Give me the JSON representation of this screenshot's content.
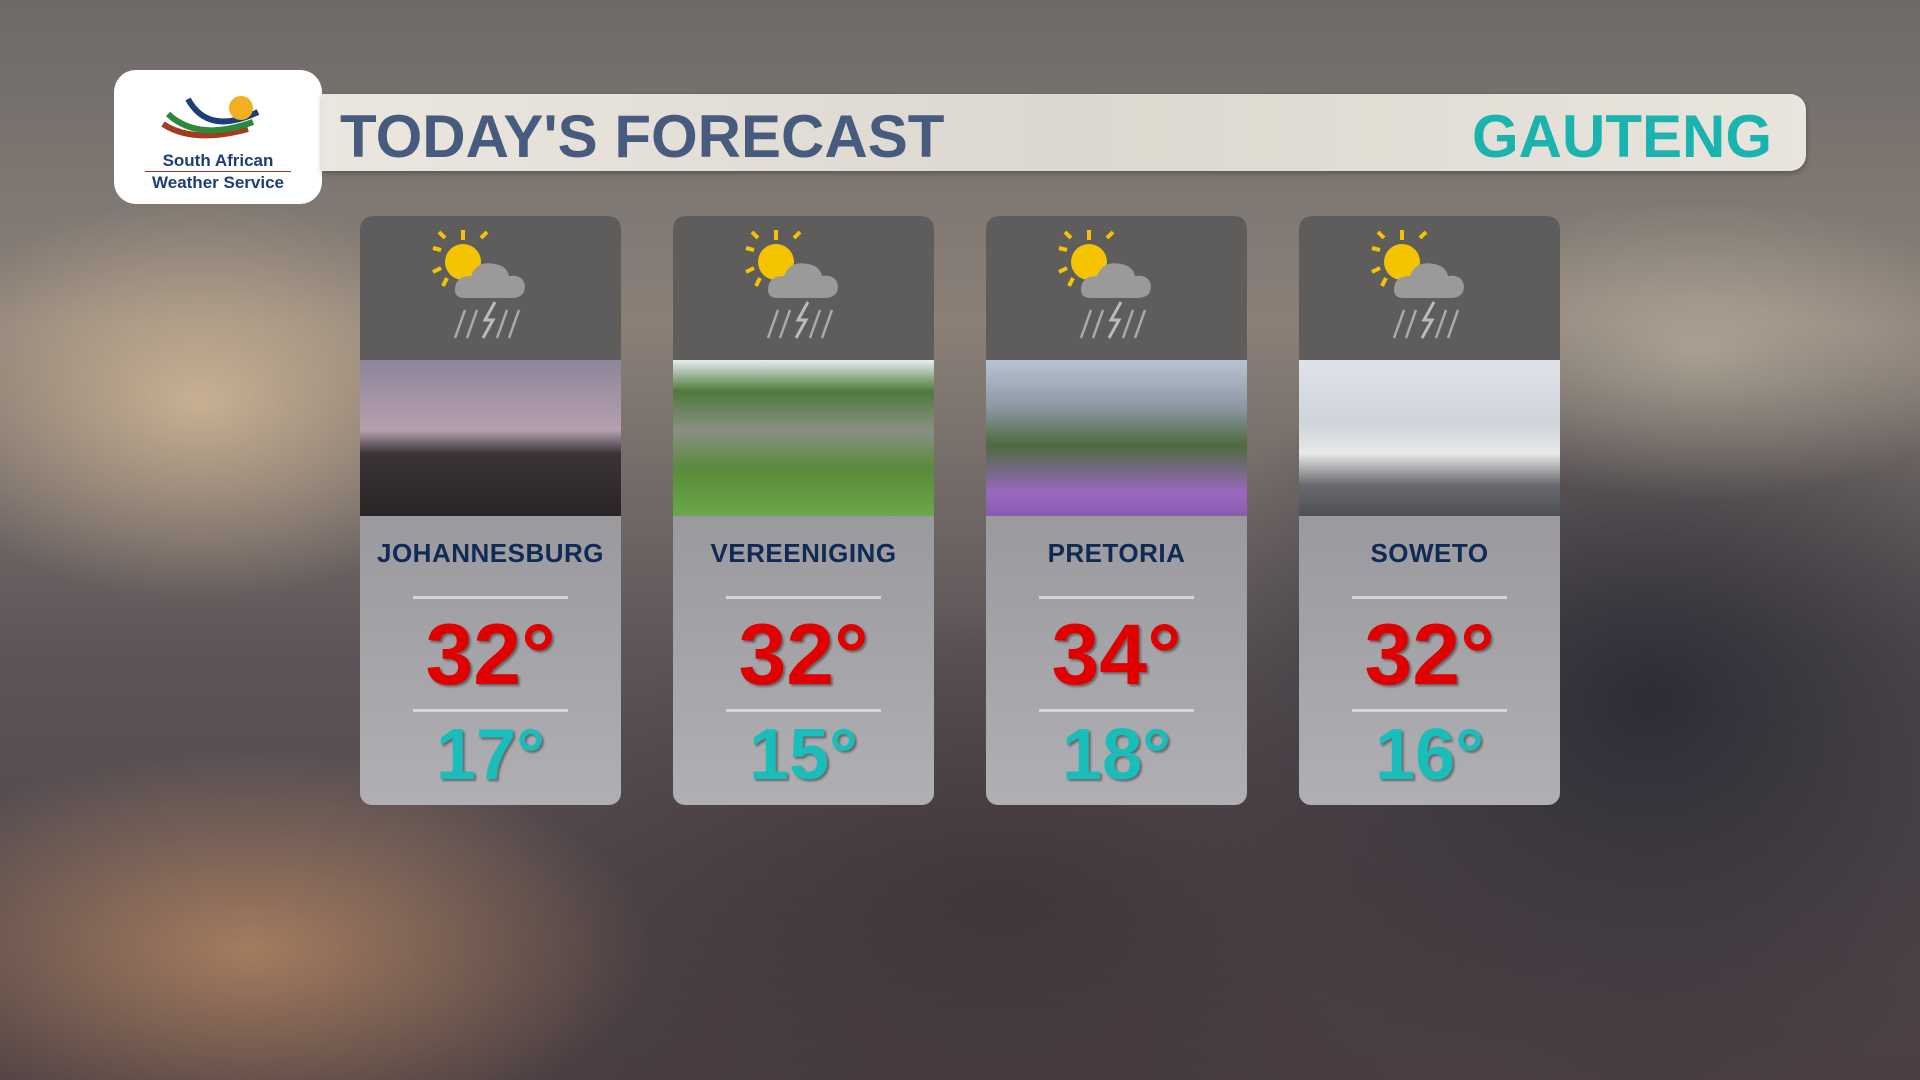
{
  "logo": {
    "line1": "South African",
    "line2": "Weather Service"
  },
  "header": {
    "title": "TODAY'S FORECAST",
    "region": "GAUTENG"
  },
  "cities": [
    {
      "name": "JOHANNESBURG",
      "high": "32°",
      "low": "17°",
      "icon": "sun-cloud-thunderstorm-icon"
    },
    {
      "name": "VEREENIGING",
      "high": "32°",
      "low": "15°",
      "icon": "sun-cloud-thunderstorm-icon"
    },
    {
      "name": "PRETORIA",
      "high": "34°",
      "low": "18°",
      "icon": "sun-cloud-thunderstorm-icon"
    },
    {
      "name": "SOWETO",
      "high": "32°",
      "low": "16°",
      "icon": "sun-cloud-thunderstorm-icon"
    }
  ],
  "colors": {
    "high": "#e00000",
    "low": "#19bdb9",
    "title": "#465b7d",
    "region": "#1bb3b0"
  }
}
